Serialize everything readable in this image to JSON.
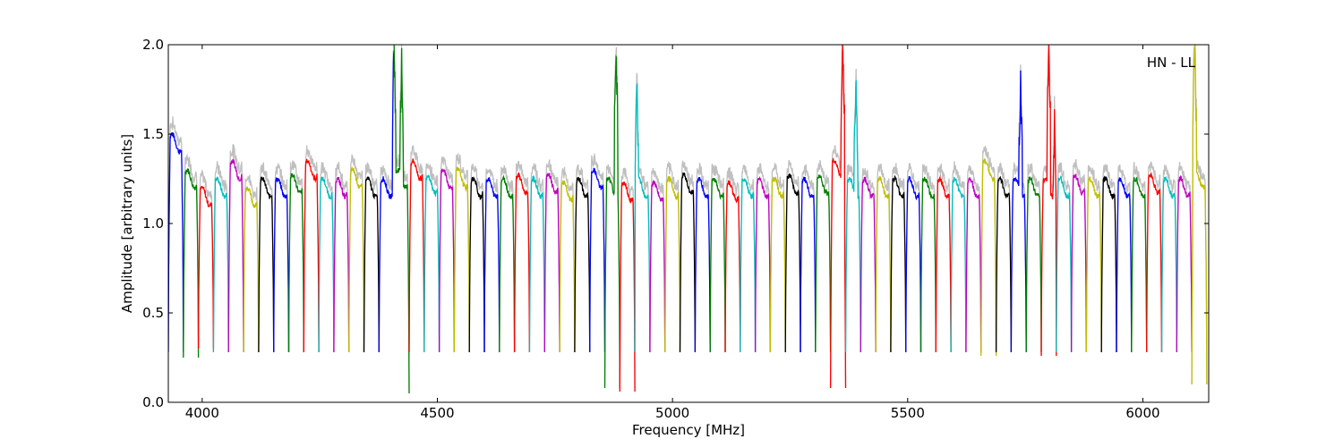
{
  "chart_data": {
    "type": "line",
    "title": "",
    "annotation": "HN - LL",
    "xlabel": "Frequency [MHz]",
    "ylabel": "Amplitude [arbitrary units]",
    "xlim": [
      3928,
      6140
    ],
    "ylim": [
      0.0,
      2.0
    ],
    "xticks": [
      4000,
      4500,
      5000,
      5500,
      6000
    ],
    "xtick_labels": [
      "4000",
      "4500",
      "5000",
      "5500",
      "6000"
    ],
    "yticks": [
      0.0,
      0.5,
      1.0,
      1.5,
      2.0
    ],
    "ytick_labels": [
      "0.0",
      "0.5",
      "1.0",
      "1.5",
      "2.0"
    ],
    "grid": false,
    "colors": {
      "raw": "#bfbfbf",
      "cycle": [
        "#0000ff",
        "#008000",
        "#ff0000",
        "#00bfbf",
        "#bf00bf",
        "#bfbf00",
        "#000000"
      ]
    },
    "subband_width_mhz": 32,
    "subband_starts": [
      3928,
      3960,
      3992,
      4024,
      4056,
      4088,
      4120,
      4152,
      4184,
      4216,
      4248,
      4280,
      4312,
      4344,
      4376,
      4408,
      4440,
      4472,
      4504,
      4536,
      4568,
      4600,
      4632,
      4664,
      4696,
      4728,
      4760,
      4792,
      4824,
      4856,
      4888,
      4920,
      4952,
      4984,
      5016,
      5048,
      5080,
      5112,
      5144,
      5176,
      5208,
      5240,
      5272,
      5304,
      5336,
      5368,
      5400,
      5432,
      5464,
      5496,
      5528,
      5560,
      5592,
      5624,
      5656,
      5688,
      5720,
      5752,
      5784,
      5816,
      5848,
      5880,
      5912,
      5944,
      5976,
      6008,
      6040,
      6072,
      6104
    ],
    "subband_plateau": [
      1.45,
      1.25,
      1.15,
      1.2,
      1.3,
      1.15,
      1.2,
      1.2,
      1.22,
      1.3,
      1.2,
      1.2,
      1.25,
      1.2,
      1.2,
      1.25,
      1.3,
      1.22,
      1.25,
      1.25,
      1.2,
      1.2,
      1.2,
      1.22,
      1.2,
      1.22,
      1.18,
      1.2,
      1.25,
      1.2,
      1.18,
      1.2,
      1.18,
      1.2,
      1.22,
      1.2,
      1.2,
      1.18,
      1.2,
      1.2,
      1.2,
      1.22,
      1.2,
      1.22,
      1.3,
      1.2,
      1.2,
      1.2,
      1.2,
      1.2,
      1.2,
      1.2,
      1.2,
      1.2,
      1.3,
      1.2,
      1.2,
      1.2,
      1.2,
      1.2,
      1.22,
      1.2,
      1.2,
      1.2,
      1.2,
      1.22,
      1.2,
      1.2,
      1.25
    ],
    "subband_edge_min": [
      0.28,
      0.25,
      0.3,
      0.28,
      0.28,
      0.28,
      0.28,
      0.28,
      0.28,
      0.28,
      0.28,
      0.28,
      0.28,
      0.28,
      0.28,
      0.05,
      0.28,
      0.28,
      0.28,
      0.28,
      0.28,
      0.28,
      0.28,
      0.28,
      0.28,
      0.28,
      0.28,
      0.28,
      0.28,
      0.08,
      0.06,
      0.28,
      0.28,
      0.28,
      0.28,
      0.28,
      0.28,
      0.28,
      0.28,
      0.28,
      0.28,
      0.28,
      0.28,
      0.28,
      0.08,
      0.28,
      0.28,
      0.28,
      0.28,
      0.28,
      0.28,
      0.28,
      0.28,
      0.28,
      0.26,
      0.28,
      0.28,
      0.28,
      0.26,
      0.28,
      0.28,
      0.28,
      0.28,
      0.28,
      0.28,
      0.28,
      0.28,
      0.28,
      0.1
    ],
    "rfi_spikes": [
      {
        "x": 4408,
        "y": 2.0
      },
      {
        "x": 4424,
        "y": 1.9
      },
      {
        "x": 4880,
        "y": 2.0
      },
      {
        "x": 4924,
        "y": 1.8
      },
      {
        "x": 5362,
        "y": 2.0
      },
      {
        "x": 5390,
        "y": 1.8
      },
      {
        "x": 5740,
        "y": 1.8
      },
      {
        "x": 5800,
        "y": 2.0
      },
      {
        "x": 5812,
        "y": 1.55
      },
      {
        "x": 6110,
        "y": 2.0
      },
      {
        "x": 6140,
        "y": 1.8
      }
    ]
  }
}
